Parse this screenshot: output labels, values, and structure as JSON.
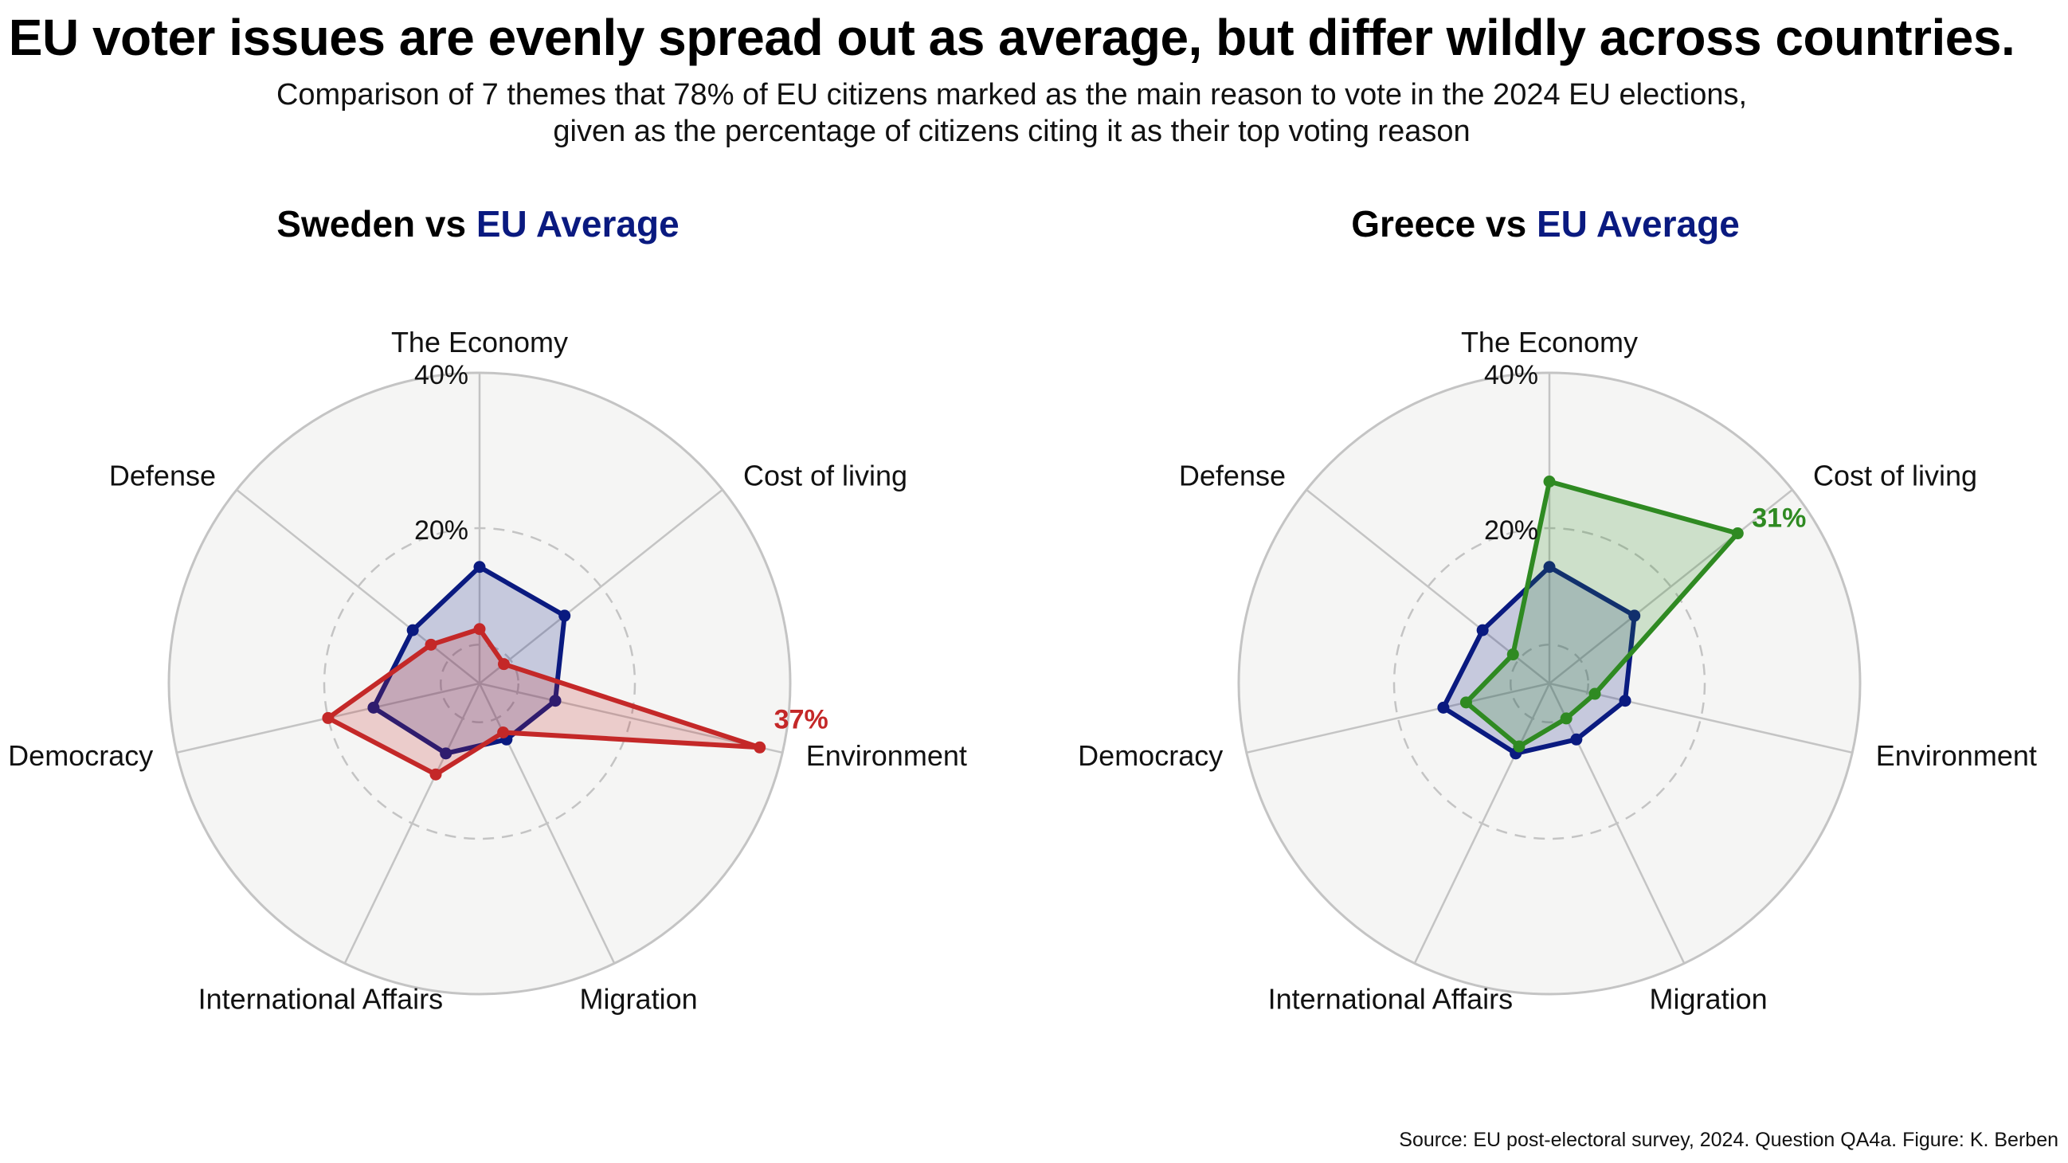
{
  "title": "EU voter issues are evenly spread out as average, but differ wildly across countries.",
  "subtitle_line1": "Comparison of 7 themes that 78% of EU citizens marked as the main reason to vote in the 2024 EU elections,",
  "subtitle_line2": "given as the percentage of citizens citing it as their top voting reason",
  "source": "Source: EU post-electoral survey, 2024. Question QA4a. Figure: K. Berben",
  "colors": {
    "eu": "#0a1a80",
    "sweden": "#c42828",
    "greece": "#2f8a22",
    "background": "#f5f5f4",
    "grid": "#c4c4c4"
  },
  "chart_data": [
    {
      "type": "radar",
      "title_country": "Sweden",
      "title_vs": " vs ",
      "title_eu": "EU Average",
      "categories": [
        "The Economy",
        "Cost of living",
        "Environment",
        "Migration",
        "International Affairs",
        "Democracy",
        "Defense"
      ],
      "rlim": [
        0,
        40
      ],
      "r_ticks": [
        20,
        40
      ],
      "r_tick_labels": [
        "20%",
        "40%"
      ],
      "series": [
        {
          "name": "EU Average",
          "color_key": "eu",
          "values": [
            15,
            14,
            10,
            8,
            10,
            14,
            11
          ]
        },
        {
          "name": "Sweden",
          "color_key": "sweden",
          "values": [
            7,
            4,
            37,
            7,
            13,
            20,
            8
          ]
        }
      ],
      "annotation": {
        "series": "Sweden",
        "category": "Environment",
        "text": "37%"
      }
    },
    {
      "type": "radar",
      "title_country": "Greece",
      "title_vs": " vs ",
      "title_eu": "EU Average",
      "categories": [
        "The Economy",
        "Cost of living",
        "Environment",
        "Migration",
        "International Affairs",
        "Democracy",
        "Defense"
      ],
      "rlim": [
        0,
        40
      ],
      "r_ticks": [
        20,
        40
      ],
      "r_tick_labels": [
        "20%",
        "40%"
      ],
      "series": [
        {
          "name": "EU Average",
          "color_key": "eu",
          "values": [
            15,
            14,
            10,
            8,
            10,
            14,
            11
          ]
        },
        {
          "name": "Greece",
          "color_key": "greece",
          "values": [
            26,
            31,
            6,
            5,
            9,
            11,
            6
          ]
        }
      ],
      "annotation": {
        "series": "Greece",
        "category": "Cost of living",
        "text": "31%"
      }
    }
  ]
}
